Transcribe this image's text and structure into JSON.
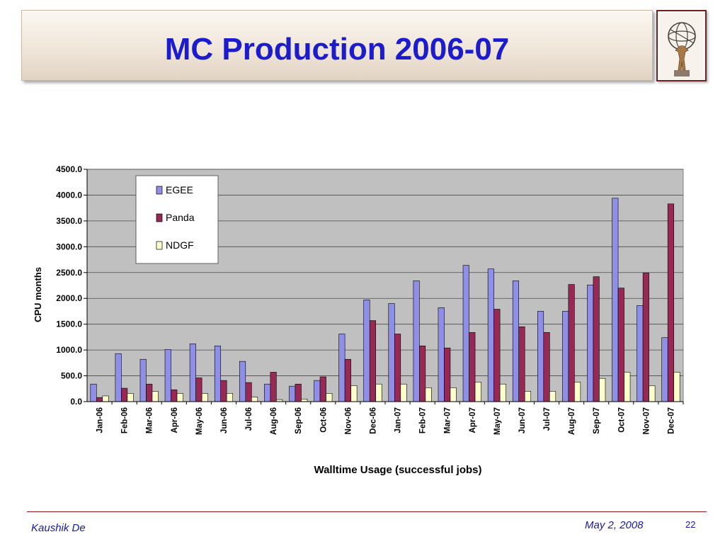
{
  "slide": {
    "title": "MC Production 2006-07",
    "author": "Kaushik De",
    "date": "May 2, 2008",
    "page_number": "22"
  },
  "colors": {
    "title": "#1c1ccc",
    "footer_text": "#1a1a9c",
    "plot_background": "#c0c0c0",
    "egee": "#8f8fe8",
    "panda": "#962a55",
    "ndgf": "#ffffcc"
  },
  "icons": {
    "logo": "atlas-statue-icon"
  },
  "chart_data": {
    "type": "bar",
    "title": "",
    "xlabel": "Walltime Usage (successful jobs)",
    "ylabel": "CPU months",
    "ylim": [
      0,
      4500
    ],
    "yticks": [
      "0.0",
      "500.0",
      "1000.0",
      "1500.0",
      "2000.0",
      "2500.0",
      "3000.0",
      "3500.0",
      "4000.0",
      "4500.0"
    ],
    "grid": true,
    "legend_position": "top-left",
    "categories": [
      "Jan-06",
      "Feb-06",
      "Mar-06",
      "Apr-06",
      "May-06",
      "Jun-06",
      "Jul-06",
      "Aug-06",
      "Sep-06",
      "Oct-06",
      "Nov-06",
      "Dec-06",
      "Jan-07",
      "Feb-07",
      "Mar-07",
      "Apr-07",
      "May-07",
      "Jun-07",
      "Jul-07",
      "Aug-07",
      "Sep-07",
      "Oct-07",
      "Nov-07",
      "Dec-07"
    ],
    "series": [
      {
        "name": "EGEE",
        "values": [
          340,
          930,
          820,
          1010,
          1120,
          1080,
          780,
          340,
          300,
          410,
          1310,
          1970,
          1900,
          2340,
          1820,
          2640,
          2570,
          2340,
          1750,
          1750,
          2260,
          3940,
          1860,
          1240
        ]
      },
      {
        "name": "Panda",
        "values": [
          80,
          260,
          340,
          230,
          460,
          410,
          370,
          570,
          340,
          480,
          820,
          1570,
          1310,
          1080,
          1040,
          1340,
          1790,
          1450,
          1340,
          2270,
          2420,
          2200,
          2490,
          3830
        ]
      },
      {
        "name": "NDGF",
        "values": [
          110,
          160,
          200,
          160,
          160,
          160,
          90,
          40,
          50,
          160,
          310,
          340,
          340,
          270,
          270,
          380,
          340,
          200,
          200,
          380,
          450,
          570,
          310,
          570
        ]
      }
    ]
  }
}
